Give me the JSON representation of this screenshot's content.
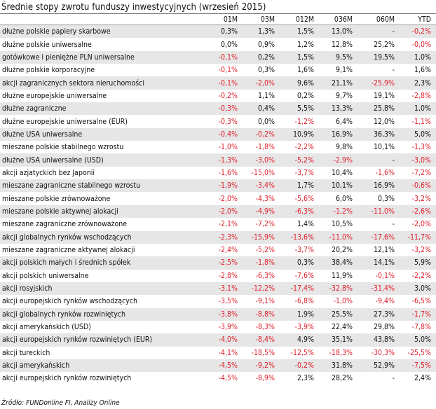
{
  "title": "Średnie stopy zwrotu funduszy inwestycyjnych (wrzesień 2015)",
  "columns": [
    "01M",
    "03M",
    "012M",
    "036M",
    "060M",
    "YTD"
  ],
  "rows": [
    {
      "name": "dłużne polskie papiery skarbowe",
      "values": [
        "0,3%",
        "1,3%",
        "1,5%",
        "13,0%",
        "-",
        "-0,2%"
      ]
    },
    {
      "name": "dłużne polskie uniwersalne",
      "values": [
        "0,0%",
        "0,9%",
        "1,2%",
        "12,8%",
        "25,2%",
        "-0,0%"
      ]
    },
    {
      "name": "gotówkowe i pieniężne PLN uniwersalne",
      "values": [
        "-0,1%",
        "0,2%",
        "1,5%",
        "9,5%",
        "19,5%",
        "1,0%"
      ]
    },
    {
      "name": "dłużne polskie korporacyjne",
      "values": [
        "-0,1%",
        "0,3%",
        "1,6%",
        "9,1%",
        "-",
        "1,6%"
      ]
    },
    {
      "name": "akcji zagranicznych sektora nieruchomości",
      "values": [
        "-0,1%",
        "-2,0%",
        "9,6%",
        "21,1%",
        "-25,9%",
        "2,3%"
      ]
    },
    {
      "name": "dłużne europejskie uniwersalne",
      "values": [
        "-0,2%",
        "1,1%",
        "0,2%",
        "9,7%",
        "19,1%",
        "-2,8%"
      ]
    },
    {
      "name": "dłużne zagraniczne",
      "values": [
        "-0,3%",
        "0,4%",
        "5,5%",
        "13,3%",
        "25,8%",
        "1,0%"
      ]
    },
    {
      "name": "dłużne europejskie uniwersalne (EUR)",
      "values": [
        "-0,3%",
        "0,0%",
        "-1,2%",
        "6,4%",
        "12,0%",
        "-1,1%"
      ]
    },
    {
      "name": "dłużne USA uniwersalne",
      "values": [
        "-0,4%",
        "-0,2%",
        "10,9%",
        "16,9%",
        "36,3%",
        "5,0%"
      ]
    },
    {
      "name": "mieszane polskie stabilnego wzrostu",
      "values": [
        "-1,0%",
        "-1,8%",
        "-2,2%",
        "9,8%",
        "10,1%",
        "-1,3%"
      ]
    },
    {
      "name": "dłużne USA uniwersalne (USD)",
      "values": [
        "-1,3%",
        "-3,0%",
        "-5,2%",
        "-2,9%",
        "-",
        "-3,0%"
      ]
    },
    {
      "name": "akcji azjatyckich bez Japonii",
      "values": [
        "-1,6%",
        "-15,0%",
        "-3,7%",
        "10,4%",
        "-1,6%",
        "-7,2%"
      ]
    },
    {
      "name": "mieszane zagraniczne stabilnego wzrostu",
      "values": [
        "-1,9%",
        "-3,4%",
        "1,7%",
        "10,1%",
        "16,9%",
        "-0,6%"
      ]
    },
    {
      "name": "mieszane polskie zrównoważone",
      "values": [
        "-2,0%",
        "-4,3%",
        "-5,6%",
        "6,0%",
        "0,3%",
        "-3,2%"
      ]
    },
    {
      "name": "mieszane polskie aktywnej alokacji",
      "values": [
        "-2,0%",
        "-4,9%",
        "-6,3%",
        "-1,2%",
        "-11,0%",
        "-2,6%"
      ]
    },
    {
      "name": "mieszane zagraniczne zrównoważone",
      "values": [
        "-2,1%",
        "-7,2%",
        "1,4%",
        "10,5%",
        "-",
        "-2,0%"
      ]
    },
    {
      "name": "akcji globalnych rynków wschodzących",
      "values": [
        "-2,3%",
        "-15,9%",
        "-13,6%",
        "-11,0%",
        "-17,6%",
        "-11,7%"
      ]
    },
    {
      "name": "mieszane zagraniczne aktywnej alokacji",
      "values": [
        "-2,4%",
        "-5,2%",
        "-3,7%",
        "20,2%",
        "12,1%",
        "-3,2%"
      ]
    },
    {
      "name": "akcji polskich małych i średnich spółek",
      "values": [
        "-2,5%",
        "-1,8%",
        "0,3%",
        "38,4%",
        "14,1%",
        "5,9%"
      ]
    },
    {
      "name": "akcji polskich uniwersalne",
      "values": [
        "-2,8%",
        "-6,3%",
        "-7,6%",
        "11,9%",
        "-0,1%",
        "-2,2%"
      ]
    },
    {
      "name": "akcji rosyjskich",
      "values": [
        "-3,1%",
        "-12,2%",
        "-17,4%",
        "-32,8%",
        "-31,4%",
        "3,0%"
      ]
    },
    {
      "name": "akcji europejskich rynków wschodzących",
      "values": [
        "-3,5%",
        "-9,1%",
        "-6,8%",
        "-1,0%",
        "-9,4%",
        "-6,5%"
      ]
    },
    {
      "name": "akcji globalnych rynków rozwiniętych",
      "values": [
        "-3,8%",
        "-8,8%",
        "1,9%",
        "25,5%",
        "27,3%",
        "-1,7%"
      ]
    },
    {
      "name": "akcji amerykańskich (USD)",
      "values": [
        "-3,9%",
        "-8,3%",
        "-3,9%",
        "22,4%",
        "29,8%",
        "-7,8%"
      ]
    },
    {
      "name": "akcji europejskich rynków rozwiniętych (EUR)",
      "values": [
        "-4,0%",
        "-8,4%",
        "4,9%",
        "35,1%",
        "43,8%",
        "5,0%"
      ]
    },
    {
      "name": "akcji tureckich",
      "values": [
        "-4,1%",
        "-18,5%",
        "-12,5%",
        "-18,3%",
        "-30,3%",
        "-25,5%"
      ]
    },
    {
      "name": "akcji amerykańskich",
      "values": [
        "-4,5%",
        "-9,2%",
        "-0,2%",
        "31,8%",
        "52,9%",
        "-7,5%"
      ]
    },
    {
      "name": "akcji europejskich rynków rozwiniętych",
      "values": [
        "-4,5%",
        "-8,9%",
        "2,3%",
        "28,2%",
        "-",
        "2,4%"
      ]
    }
  ],
  "source": "Źródło: FUNDonline FI, Analizy Online",
  "colors": {
    "negative": "#e0202c",
    "stripe": "#e6e6e6"
  }
}
